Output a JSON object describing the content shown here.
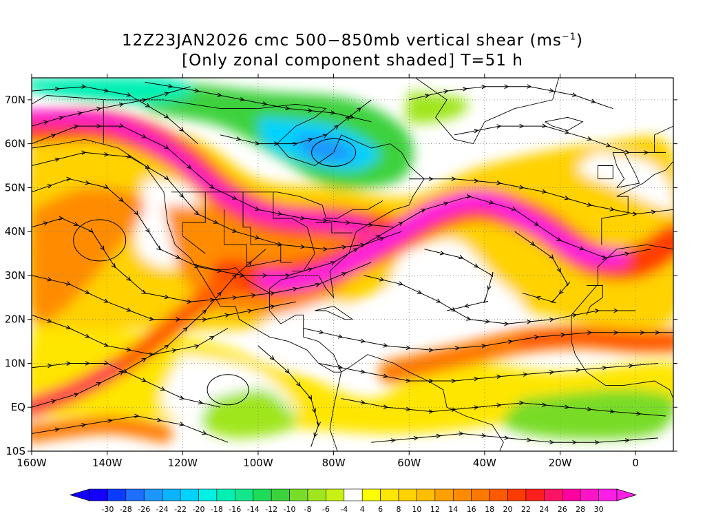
{
  "title": {
    "line1_prefix": "12Z23JAN2026 cmc 500−850mb vertical shear (ms",
    "line1_superscript": "−1",
    "line1_suffix": ")",
    "line2": "[Only zonal component shaded] T=51 h"
  },
  "map": {
    "lon_range": [
      -160,
      10
    ],
    "lat_range": [
      -10,
      75
    ],
    "lat_labels": [
      {
        "lat": 70,
        "text": "70N"
      },
      {
        "lat": 60,
        "text": "60N"
      },
      {
        "lat": 50,
        "text": "50N"
      },
      {
        "lat": 40,
        "text": "40N"
      },
      {
        "lat": 30,
        "text": "30N"
      },
      {
        "lat": 20,
        "text": "20N"
      },
      {
        "lat": 10,
        "text": "10N"
      },
      {
        "lat": 0,
        "text": "EQ"
      },
      {
        "lat": -10,
        "text": "10S"
      }
    ],
    "lon_labels": [
      {
        "lon": -160,
        "text": "160W"
      },
      {
        "lon": -140,
        "text": "140W"
      },
      {
        "lon": -120,
        "text": "120W"
      },
      {
        "lon": -100,
        "text": "100W"
      },
      {
        "lon": -80,
        "text": "80W"
      },
      {
        "lon": -60,
        "text": "60W"
      },
      {
        "lon": -40,
        "text": "40W"
      },
      {
        "lon": -20,
        "text": "20W"
      },
      {
        "lon": 0,
        "text": "0"
      }
    ],
    "gridlines": "dotted",
    "shaded_field": "zonal component of vertical shear",
    "overlay": "streamlines",
    "features": [
      {
        "name": "jet-streak-north-pacific",
        "lon": -140,
        "lat": 64,
        "value": 28
      },
      {
        "name": "jet-core-eastern-us",
        "lon": -85,
        "lat": 32,
        "value": 28
      },
      {
        "name": "jet-core-central-atlantic",
        "lon": -40,
        "lat": 45,
        "value": 28
      },
      {
        "name": "jet-streak-eastern-atlantic",
        "lon": -10,
        "lat": 33,
        "value": 26
      },
      {
        "name": "subtropical-band-atlantic",
        "lon": -25,
        "lat": 15,
        "value": 18
      },
      {
        "name": "equatorial-pacific-band",
        "lon": -145,
        "lat": 2,
        "value": 20
      },
      {
        "name": "easterly-shear-hudson-bay",
        "lon": -80,
        "lat": 60,
        "value": -22
      },
      {
        "name": "easterly-shear-arctic",
        "lon": -130,
        "lat": 72,
        "value": -18
      }
    ]
  },
  "colorbar": {
    "levels": [
      "-30",
      "-28",
      "-26",
      "-24",
      "-22",
      "-20",
      "-18",
      "-16",
      "-14",
      "-12",
      "-10",
      "-8",
      "-6",
      "-4",
      "4",
      "6",
      "8",
      "10",
      "12",
      "14",
      "16",
      "18",
      "20",
      "22",
      "24",
      "26",
      "28",
      "30"
    ],
    "colors": [
      "#1400ff",
      "#0a3cff",
      "#1e6eff",
      "#1e96ff",
      "#0ab4ff",
      "#00d2ff",
      "#00f0e6",
      "#00f0b4",
      "#14e68c",
      "#1edc5a",
      "#3cd23c",
      "#78dc28",
      "#a0e61e",
      "#c8f014",
      "#ffffff",
      "#ffff00",
      "#ffe600",
      "#ffd200",
      "#ffbe00",
      "#ffa000",
      "#ff8c00",
      "#ff7800",
      "#ff5a00",
      "#ff3c00",
      "#ff1e1e",
      "#ff1464",
      "#ff00a0",
      "#ff14c8",
      "#ff1ee6"
    ],
    "under_color": "#1400ff",
    "over_color": "#ff1ee6"
  }
}
